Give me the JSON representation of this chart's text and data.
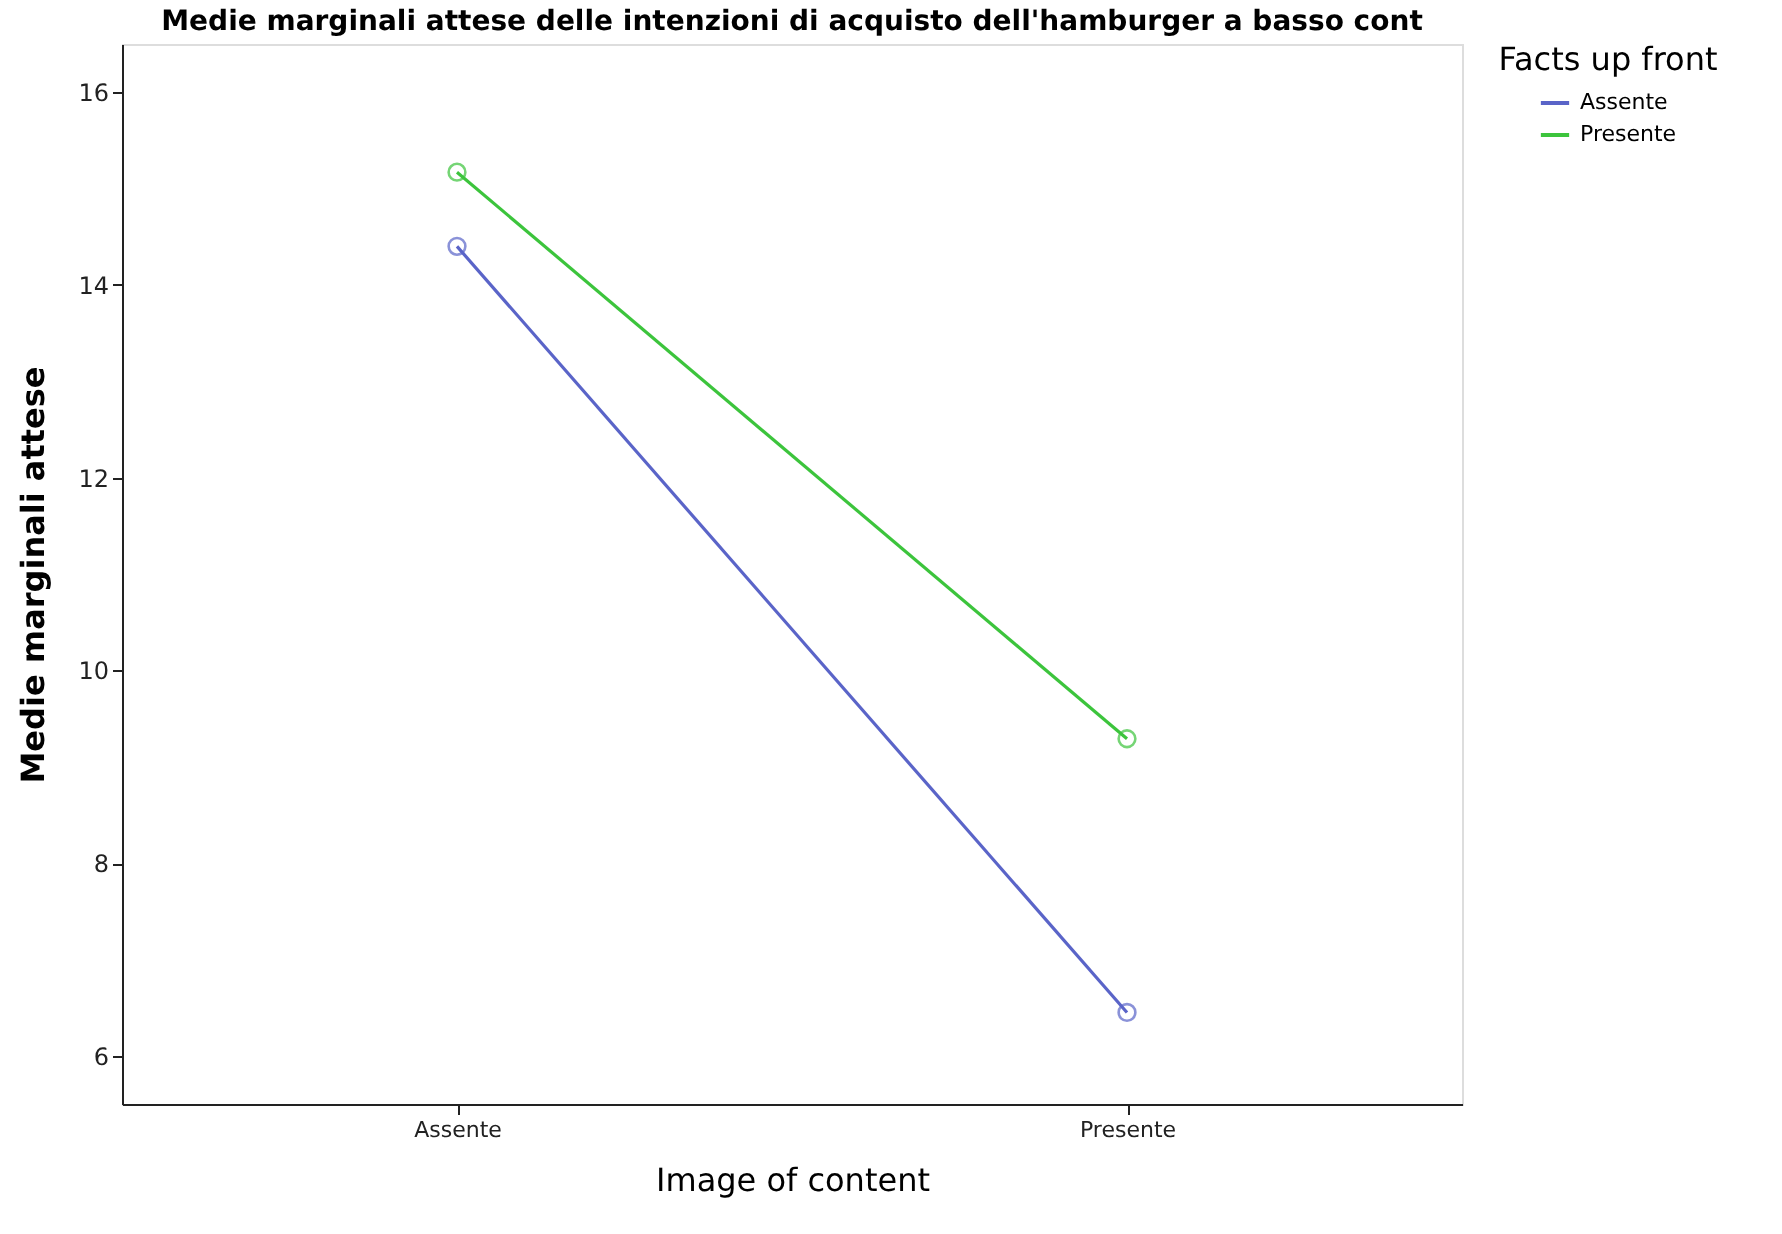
{
  "chart_data": {
    "type": "line",
    "title": "Medie marginali attese delle intenzioni di acquisto dell'hamburger a basso cont",
    "xlabel": "Image of content",
    "ylabel": "Medie marginali attese",
    "legend_title": "Facts up front",
    "categories": [
      "Assente",
      "Presente"
    ],
    "series": [
      {
        "name": "Assente",
        "color": "#5a64c8",
        "values": [
          14.4,
          6.45
        ]
      },
      {
        "name": "Presente",
        "color": "#3cc43c",
        "values": [
          15.17,
          9.29
        ]
      }
    ],
    "ylim": [
      5.5,
      16.5
    ],
    "yticks": [
      6,
      8,
      10,
      12,
      14,
      16
    ],
    "grid": false,
    "legend": "top right",
    "marker": "circle",
    "line_style": "solid"
  }
}
